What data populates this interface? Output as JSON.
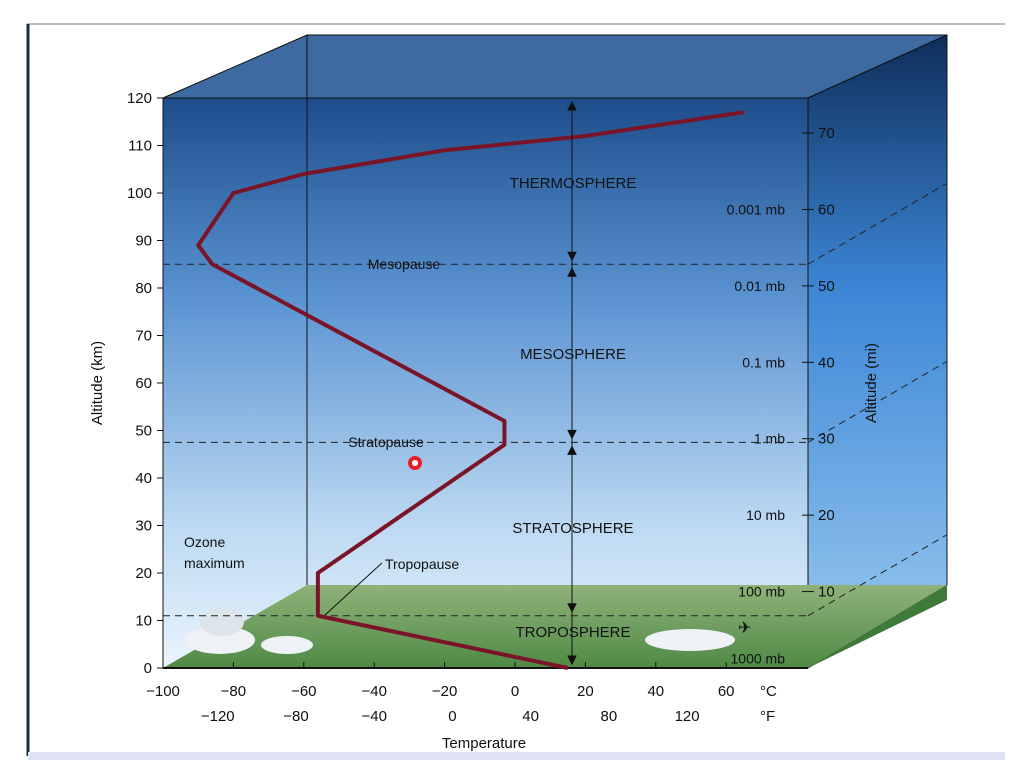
{
  "diagram": {
    "y_axis_left": {
      "label": "Altitude (km)",
      "ticks": [
        0,
        10,
        20,
        30,
        40,
        50,
        60,
        70,
        80,
        90,
        100,
        110,
        120
      ]
    },
    "y_axis_right": {
      "label": "Altitude (mi)",
      "ticks": [
        10,
        20,
        30,
        40,
        50,
        60,
        70
      ]
    },
    "x_axis": {
      "label": "Temperature",
      "celsius_ticks": [
        -100,
        -80,
        -60,
        -40,
        -20,
        0,
        20,
        40,
        60
      ],
      "celsius_unit": "°C",
      "fahrenheit_ticks": [
        -120,
        -80,
        -40,
        0,
        40,
        80,
        120
      ],
      "fahrenheit_unit": "°F"
    },
    "layers": [
      "THERMOSPHERE",
      "MESOSPHERE",
      "STRATOSPHERE",
      "TROPOSPHERE"
    ],
    "boundaries": {
      "mesopause": "Mesopause",
      "stratopause": "Stratopause",
      "tropopause": "Tropopause"
    },
    "ozone": [
      "Ozone",
      "maximum"
    ],
    "pressure_levels": [
      {
        "label": "0.001 mb",
        "mi": 60
      },
      {
        "label": "0.01 mb",
        "mi": 50
      },
      {
        "label": "0.1 mb",
        "mi": 40
      },
      {
        "label": "1 mb",
        "mi": 30
      },
      {
        "label": "10 mb",
        "mi": 20
      },
      {
        "label": "100 mb",
        "mi": 10
      },
      {
        "label": "1000 mb",
        "mi": 0
      }
    ],
    "temperature_profile_c_km": [
      [
        15,
        0
      ],
      [
        -56,
        11
      ],
      [
        -56,
        20
      ],
      [
        -3,
        47
      ],
      [
        -3,
        52
      ],
      [
        -86,
        85
      ],
      [
        -90,
        89
      ],
      [
        -80,
        100
      ],
      [
        -60,
        104
      ],
      [
        -20,
        109
      ],
      [
        20,
        112
      ],
      [
        65,
        117
      ]
    ],
    "colors": {
      "profile": "#7a1428",
      "sky_top": "#1f4f8a",
      "sky_bottom": "#e8f2fb",
      "ground": "#6f9a5a"
    }
  }
}
